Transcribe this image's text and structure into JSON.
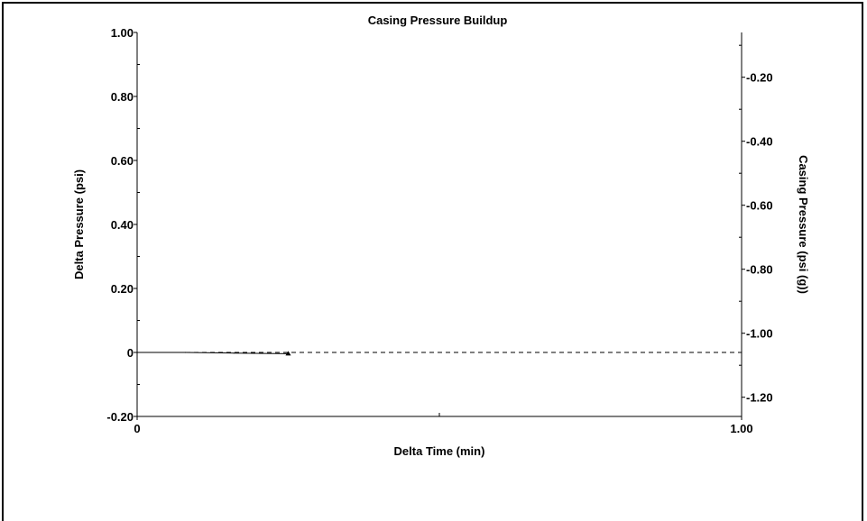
{
  "chart_data": {
    "type": "line",
    "title": "Casing Pressure Buildup",
    "xlabel": "Delta Time (min)",
    "ylabel": "Delta Pressure (psi)",
    "y2label": "Casing Pressure (psi (g))",
    "xlim": [
      0,
      1
    ],
    "ylim": [
      -0.2,
      1
    ],
    "y2lim": [
      -1.26,
      -0.06
    ],
    "grid": false,
    "x_ticks": [
      {
        "value": 0,
        "label": "0"
      },
      {
        "value": 1,
        "label": "1.00"
      }
    ],
    "y_ticks": [
      {
        "value": 1,
        "label": "1.00"
      },
      {
        "value": 0.8,
        "label": "0.80"
      },
      {
        "value": 0.6,
        "label": "0.60"
      },
      {
        "value": 0.4,
        "label": "0.40"
      },
      {
        "value": 0.2,
        "label": "0.20"
      },
      {
        "value": 0,
        "label": "0"
      },
      {
        "value": -0.2,
        "label": "-0.20"
      }
    ],
    "y2_ticks": [
      {
        "value": -0.2,
        "label": "-0.20"
      },
      {
        "value": -0.4,
        "label": "-0.40"
      },
      {
        "value": -0.6,
        "label": "-0.60"
      },
      {
        "value": -0.8,
        "label": "-0.80"
      },
      {
        "value": -1.0,
        "label": "-1.00"
      },
      {
        "value": -1.2,
        "label": "-1.20"
      }
    ],
    "series": [
      {
        "style": "solid",
        "color": "#000000",
        "x": [
          0,
          0.08,
          0.16,
          0.25
        ],
        "y": [
          0,
          0,
          -0.002,
          -0.004
        ],
        "marker": "triangle"
      },
      {
        "style": "dashed",
        "color": "#000000",
        "x": [
          0,
          1
        ],
        "y": [
          0,
          0
        ]
      }
    ]
  }
}
